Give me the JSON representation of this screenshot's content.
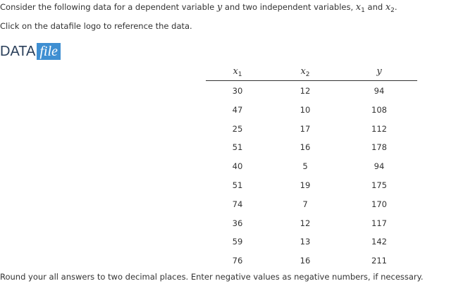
{
  "intro": [
    "Consider the following data for a dependent variable ",
    "y",
    " and two independent variables, ",
    "x",
    "1",
    " and ",
    "x",
    "2",
    "."
  ],
  "instruction": "Click on the datafile logo to reference the data.",
  "logo": {
    "left": "DATA",
    "right": "file"
  },
  "table": {
    "columns": [
      {
        "var": "x",
        "sub": "1"
      },
      {
        "var": "x",
        "sub": "2"
      },
      {
        "var": "y"
      }
    ],
    "rows": [
      [
        30,
        12,
        94
      ],
      [
        47,
        10,
        108
      ],
      [
        25,
        17,
        112
      ],
      [
        51,
        16,
        178
      ],
      [
        40,
        5,
        94
      ],
      [
        51,
        19,
        175
      ],
      [
        74,
        7,
        170
      ],
      [
        36,
        12,
        117
      ],
      [
        59,
        13,
        142
      ],
      [
        76,
        16,
        211
      ]
    ]
  },
  "footer": "Round your all answers to two decimal places. Enter negative values as negative numbers, if necessary."
}
